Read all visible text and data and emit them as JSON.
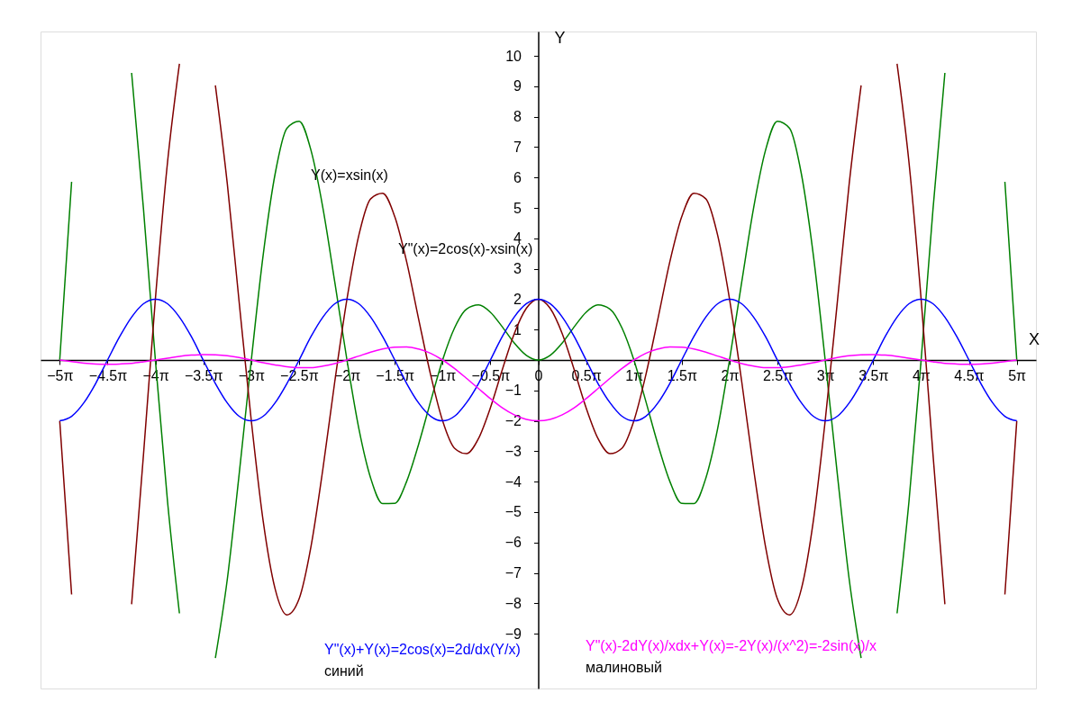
{
  "chart_data": {
    "type": "line",
    "xlabel": "X",
    "ylabel": "Y",
    "x": [
      -15.71,
      -15.32,
      -14.92,
      -14.53,
      -14.14,
      -13.74,
      -13.35,
      -12.96,
      -12.57,
      -12.17,
      -11.78,
      -11.39,
      -11.0,
      -10.6,
      -10.21,
      -9.82,
      -9.42,
      -9.03,
      -8.64,
      -8.25,
      -7.85,
      -7.46,
      -7.07,
      -6.68,
      -6.28,
      -5.89,
      -5.5,
      -5.11,
      -4.71,
      -4.32,
      -3.93,
      -3.53,
      -3.14,
      -2.75,
      -2.36,
      -1.96,
      -1.57,
      -1.18,
      -0.79,
      -0.39,
      0,
      0.39,
      0.79,
      1.18,
      1.57,
      1.96,
      2.36,
      2.75,
      3.14,
      3.53,
      3.93,
      4.32,
      4.71,
      5.11,
      5.5,
      5.89,
      6.28,
      6.68,
      7.07,
      7.46,
      7.85,
      8.25,
      8.64,
      9.03,
      9.42,
      9.82,
      10.21,
      10.6,
      11.0,
      11.39,
      11.78,
      12.17,
      12.57,
      12.96,
      13.35,
      13.74,
      14.14,
      14.53,
      14.92,
      15.32,
      15.71
    ],
    "series": [
      {
        "name": "Y(x)=xsin(x)",
        "color": "#008000",
        "values": [
          0,
          5.86,
          null,
          null,
          null,
          null,
          9.44,
          4.96,
          0,
          -4.66,
          -8.33,
          null,
          null,
          -9.8,
          -7.22,
          -3.76,
          0,
          3.46,
          6.11,
          7.62,
          7.85,
          6.89,
          5.0,
          2.56,
          0,
          -2.25,
          -3.89,
          -4.72,
          -4.71,
          -3.99,
          -2.78,
          -1.35,
          0,
          1.05,
          1.67,
          1.81,
          1.57,
          1.09,
          0.56,
          0.15,
          0,
          0.15,
          0.56,
          1.09,
          1.57,
          1.81,
          1.67,
          1.05,
          0,
          -1.35,
          -2.78,
          -3.99,
          -4.71,
          -4.72,
          -3.89,
          -2.25,
          0,
          2.56,
          5.0,
          6.89,
          7.85,
          7.62,
          6.11,
          3.46,
          0,
          -3.76,
          -7.22,
          -9.8,
          null,
          null,
          -8.33,
          -4.66,
          0,
          4.96,
          9.44,
          null,
          null,
          null,
          null,
          5.86,
          0
        ]
      },
      {
        "name": "Y\"(x)=2cos(x)-xsin(x)",
        "color": "#800000",
        "values": [
          -2,
          -7.71,
          null,
          null,
          null,
          null,
          -8.03,
          -3.11,
          2,
          6.51,
          9.74,
          null,
          null,
          9.03,
          5.81,
          1.91,
          -2,
          -5.3,
          -7.52,
          -8.38,
          -7.85,
          -6.13,
          -3.58,
          -0.71,
          2,
          4.1,
          5.3,
          5.48,
          4.71,
          3.23,
          1.36,
          -0.5,
          -2,
          -2.9,
          -3.08,
          -2.58,
          -1.57,
          -0.32,
          0.86,
          1.7,
          2,
          1.7,
          0.86,
          -0.32,
          -1.57,
          -2.58,
          -3.08,
          -2.9,
          -2,
          -0.5,
          1.36,
          3.23,
          4.71,
          5.48,
          5.3,
          4.1,
          2,
          -0.71,
          -3.58,
          -6.13,
          -7.85,
          -8.38,
          -7.52,
          -5.3,
          -2,
          1.91,
          5.81,
          9.03,
          null,
          null,
          9.74,
          6.51,
          2,
          -3.11,
          -8.03,
          null,
          null,
          null,
          null,
          -7.71,
          -2
        ]
      },
      {
        "name": "Y\"(x)+Y(x)=2cos(x)=2d/dx(Y/x)",
        "color": "#0000ff",
        "values": [
          -2,
          -1.85,
          -1.41,
          -0.77,
          0,
          0.77,
          1.41,
          1.85,
          2,
          1.85,
          1.41,
          0.77,
          0,
          -0.77,
          -1.41,
          -1.85,
          -2,
          -1.85,
          -1.41,
          -0.77,
          0,
          0.77,
          1.41,
          1.85,
          2,
          1.85,
          1.41,
          0.77,
          0,
          -0.77,
          -1.41,
          -1.85,
          -2,
          -1.85,
          -1.41,
          -0.77,
          0,
          0.77,
          1.41,
          1.85,
          2,
          1.85,
          1.41,
          0.77,
          0,
          -0.77,
          -1.41,
          -1.85,
          -2,
          -1.85,
          -1.41,
          -0.77,
          0,
          0.77,
          1.41,
          1.85,
          2,
          1.85,
          1.41,
          0.77,
          0,
          -0.77,
          -1.41,
          -1.85,
          -2,
          -1.85,
          -1.41,
          -0.77,
          0,
          0.77,
          1.41,
          1.85,
          2,
          1.85,
          1.41,
          0.77,
          0,
          -0.77,
          -1.41,
          -1.85,
          -2
        ]
      },
      {
        "name": "Y\"(x)-2dY(x)/xdx+Y(x)=-2Y(x)/(x^2)=-2sin(x)/x",
        "color": "#ff00ff",
        "values": [
          0,
          -0.05,
          -0.1,
          -0.13,
          -0.14,
          -0.13,
          -0.11,
          -0.06,
          0,
          0.06,
          0.12,
          0.16,
          0.18,
          0.17,
          0.14,
          0.08,
          0,
          -0.09,
          -0.16,
          -0.22,
          -0.25,
          -0.25,
          -0.2,
          -0.12,
          0,
          0.13,
          0.26,
          0.36,
          0.42,
          0.43,
          0.36,
          0.22,
          0,
          -0.28,
          -0.6,
          -0.94,
          -1.27,
          -1.57,
          -1.8,
          -1.95,
          -2,
          -1.95,
          -1.8,
          -1.57,
          -1.27,
          -0.94,
          -0.6,
          -0.28,
          0,
          0.22,
          0.36,
          0.43,
          0.42,
          0.36,
          0.26,
          0.13,
          0,
          -0.12,
          -0.2,
          -0.25,
          -0.25,
          -0.22,
          -0.16,
          -0.09,
          0,
          0.08,
          0.14,
          0.17,
          0.18,
          0.16,
          0.12,
          0.06,
          0,
          -0.06,
          -0.11,
          -0.13,
          -0.14,
          -0.13,
          -0.1,
          -0.05,
          0
        ]
      }
    ],
    "annotations": [
      "синий",
      "малиновый"
    ],
    "xlim": [
      -16.34,
      16.34
    ],
    "ylim": [
      -10.8,
      10.8
    ],
    "xticks": [
      {
        "value": -15.708,
        "label": "−5π"
      },
      {
        "value": -14.137,
        "label": "−4.5π"
      },
      {
        "value": -12.566,
        "label": "−4π"
      },
      {
        "value": -10.996,
        "label": "−3.5π"
      },
      {
        "value": -9.425,
        "label": "−3π"
      },
      {
        "value": -7.854,
        "label": "−2.5π"
      },
      {
        "value": -6.283,
        "label": "−2π"
      },
      {
        "value": -4.712,
        "label": "−1.5π"
      },
      {
        "value": -3.142,
        "label": "−1π"
      },
      {
        "value": -1.571,
        "label": "−0.5π"
      },
      {
        "value": 0,
        "label": "0"
      },
      {
        "value": 1.571,
        "label": "0.5π"
      },
      {
        "value": 3.142,
        "label": "1π"
      },
      {
        "value": 4.712,
        "label": "1.5π"
      },
      {
        "value": 6.283,
        "label": "2π"
      },
      {
        "value": 7.854,
        "label": "2.5π"
      },
      {
        "value": 9.425,
        "label": "3π"
      },
      {
        "value": 10.996,
        "label": "3.5π"
      },
      {
        "value": 12.566,
        "label": "4π"
      },
      {
        "value": 14.137,
        "label": "4.5π"
      },
      {
        "value": 15.708,
        "label": "5π"
      }
    ],
    "yticks": [
      -9,
      -8,
      -7,
      -6,
      -5,
      -4,
      -3,
      -2,
      -1,
      1,
      2,
      3,
      4,
      5,
      6,
      7,
      8,
      9,
      10
    ],
    "grid": false,
    "marker": "none",
    "line_style": "solid"
  }
}
